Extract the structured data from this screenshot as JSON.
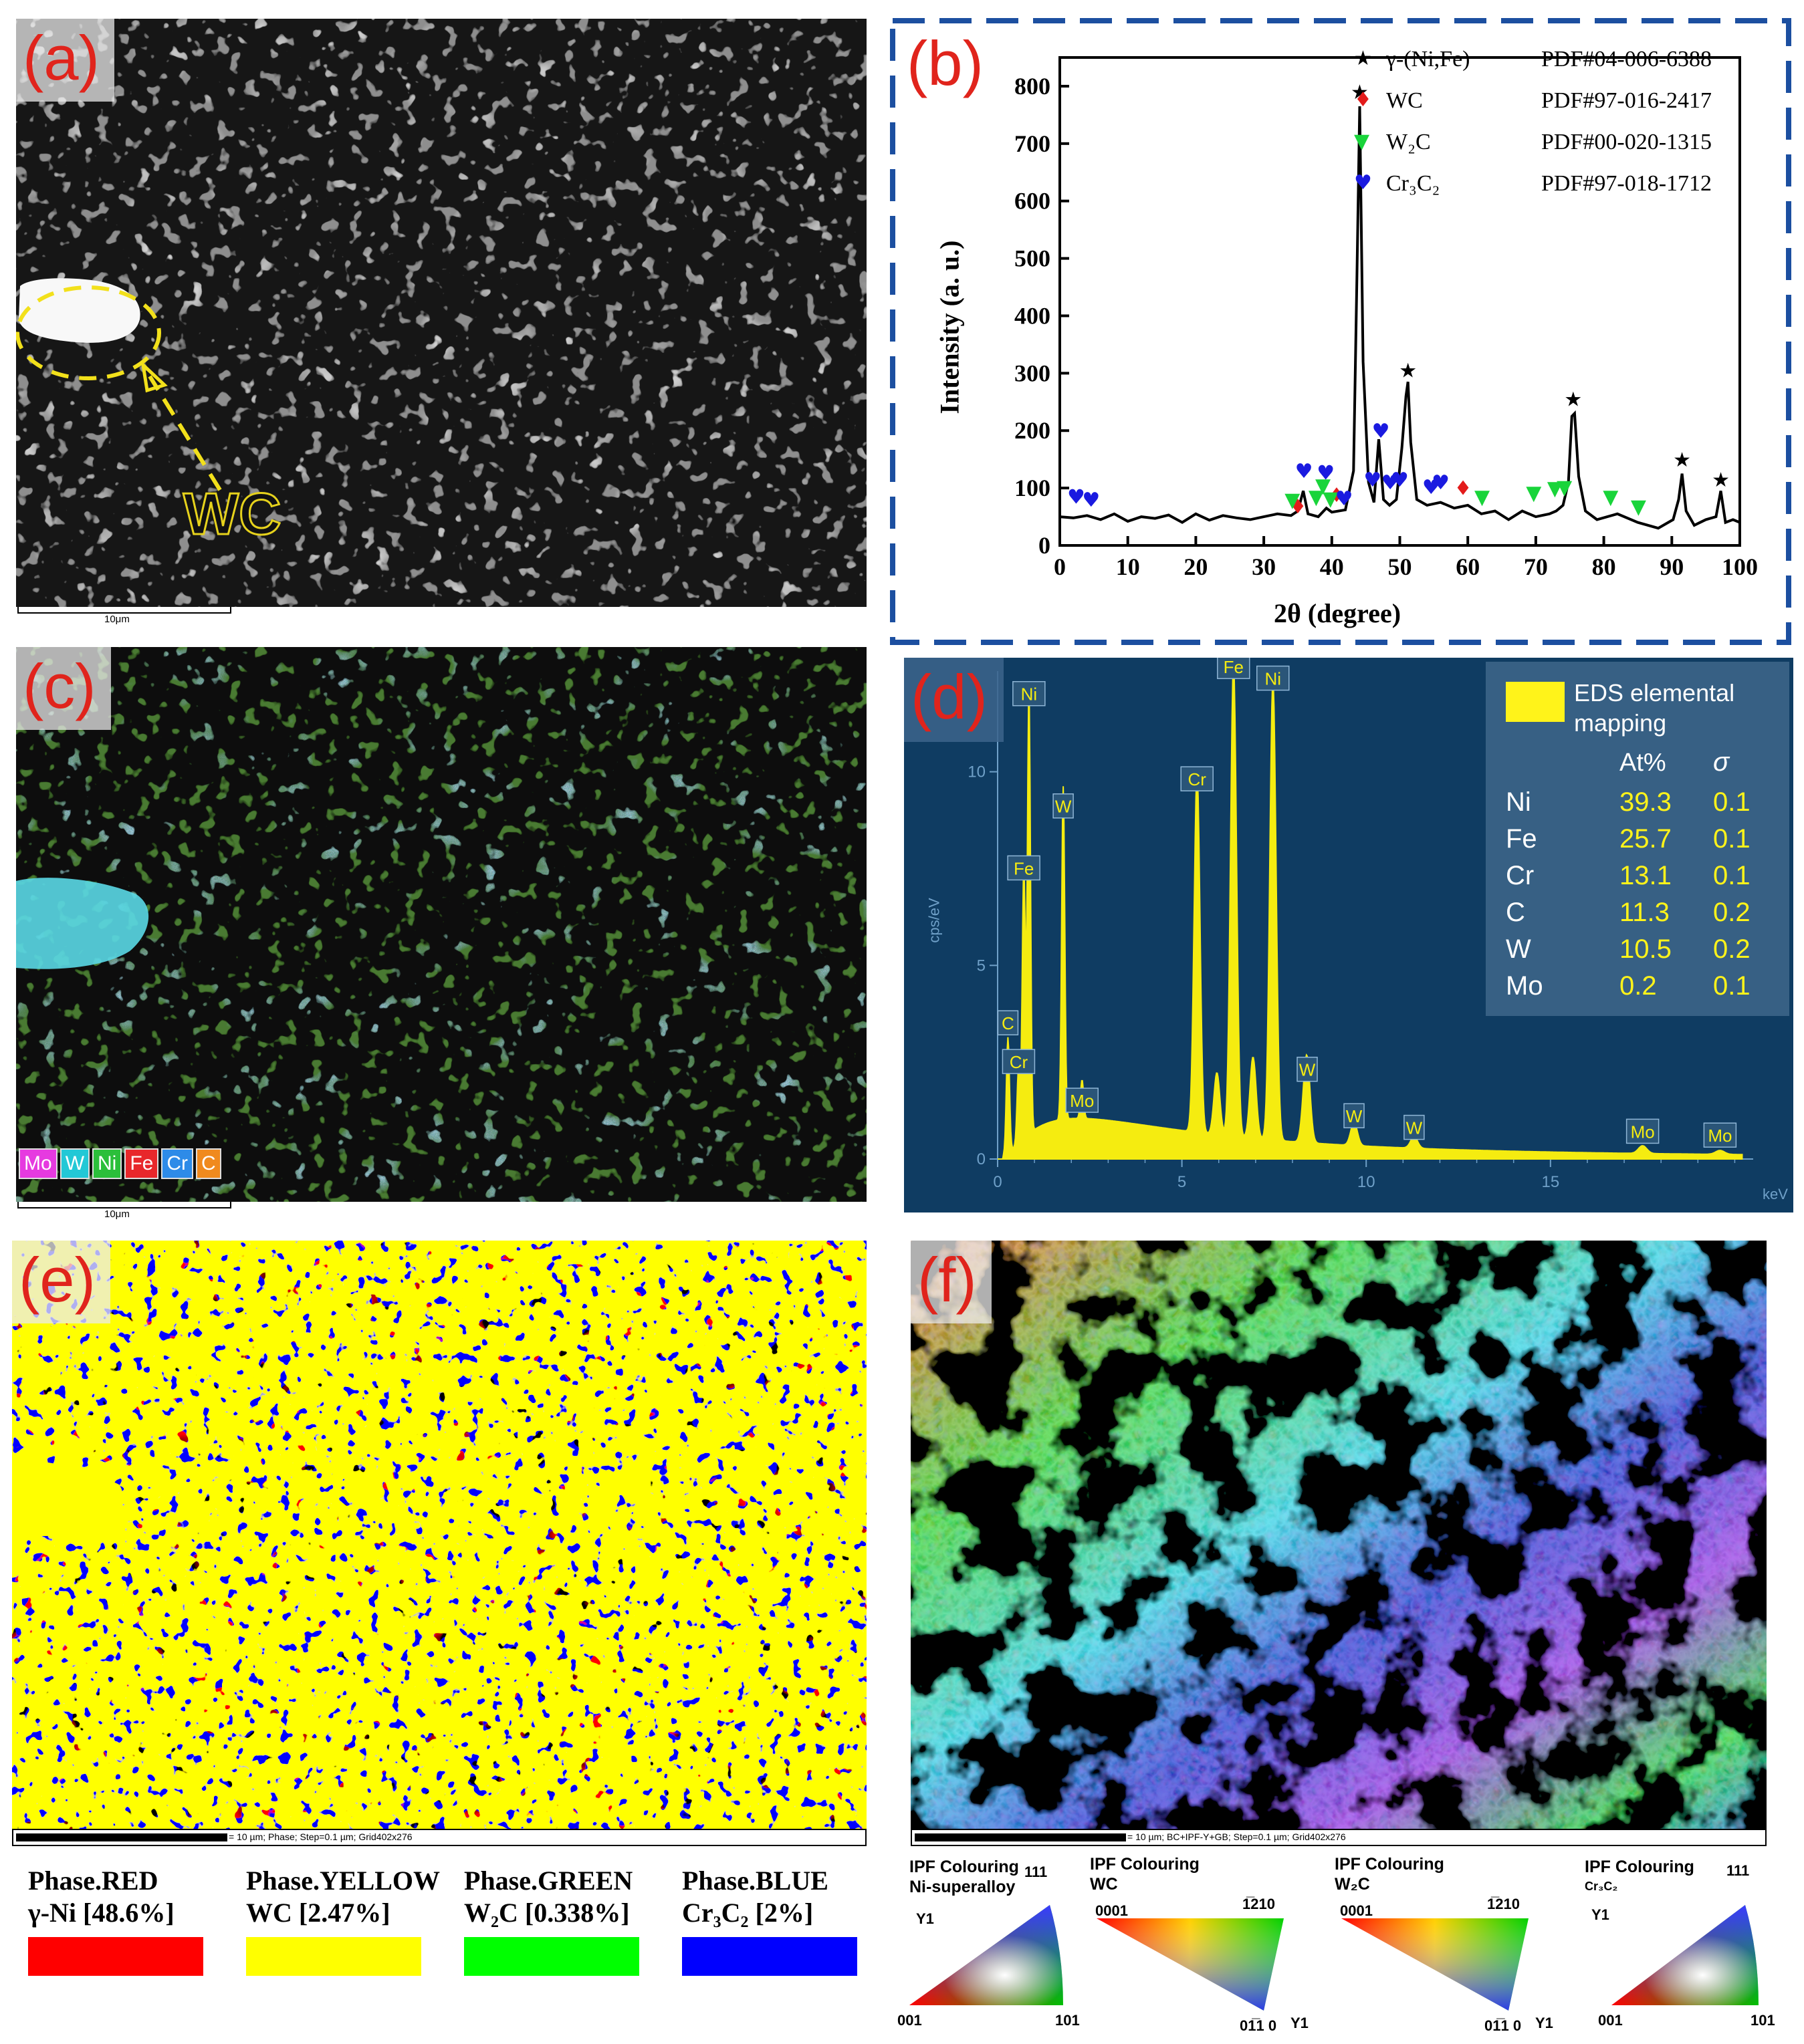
{
  "panel_a": {
    "label": "(a)",
    "annotation": "WC",
    "scalebar": "10μm",
    "colors": {
      "matrix": "#8e8e8e",
      "bright": "#d4d4d4",
      "pore": "#111111",
      "ellipse": "#f2e01b"
    }
  },
  "panel_b": {
    "label": "(b)",
    "legend": [
      {
        "marker": "★",
        "color": "#000000",
        "phase": "γ-(Ni,Fe)",
        "pdf": "PDF#04-006-6388"
      },
      {
        "marker": "♦",
        "color": "#e31b1b",
        "phase": "WC",
        "pdf": "PDF#97-016-2417"
      },
      {
        "marker": "▼",
        "color": "#19d43a",
        "phase": "W₂C",
        "pdf": "PDF#00-020-1315"
      },
      {
        "marker": "♥",
        "color": "#1a1ae0",
        "phase": "Cr₃C₂",
        "pdf": "PDF#97-018-1712"
      }
    ]
  },
  "chart_data": {
    "type": "line",
    "title": "",
    "xlabel": "2θ (degree)",
    "ylabel": "Intensity (a. u.)",
    "xlim": [
      0,
      100
    ],
    "ylim": [
      0,
      850
    ],
    "xticks": [
      0,
      10,
      20,
      30,
      40,
      50,
      60,
      70,
      80,
      90,
      100
    ],
    "yticks": [
      0,
      100,
      200,
      300,
      400,
      500,
      600,
      700,
      800
    ],
    "series": [
      {
        "x": [
          0,
          2,
          4,
          6,
          8,
          10,
          12,
          14,
          16,
          18,
          20,
          22,
          24,
          26,
          28,
          30,
          32,
          34,
          35,
          35.8,
          36.5,
          38,
          39.2,
          40,
          42,
          43.2,
          43.7,
          44.1,
          44.6,
          45.4,
          46.2,
          46.9,
          47.6,
          48.5,
          49.5,
          50.3,
          50.9,
          51.2,
          51.6,
          52.5,
          54,
          56,
          58,
          60,
          62,
          64,
          66,
          68,
          70,
          72,
          73,
          74,
          74.8,
          75.3,
          75.7,
          76.3,
          77.3,
          79,
          82,
          85,
          88,
          90.2,
          91,
          91.5,
          92.1,
          93.3,
          95,
          96.5,
          97.2,
          97.9,
          99,
          100
        ],
        "y": [
          50,
          48,
          52,
          45,
          55,
          42,
          50,
          47,
          53,
          40,
          55,
          44,
          52,
          48,
          45,
          50,
          55,
          52,
          60,
          95,
          55,
          50,
          65,
          58,
          62,
          130,
          470,
          765,
          320,
          110,
          75,
          185,
          80,
          70,
          80,
          170,
          260,
          285,
          180,
          80,
          70,
          75,
          65,
          70,
          55,
          60,
          45,
          60,
          50,
          55,
          60,
          70,
          110,
          225,
          230,
          120,
          60,
          45,
          55,
          40,
          30,
          45,
          80,
          125,
          60,
          35,
          45,
          50,
          95,
          40,
          45,
          40
        ]
      }
    ],
    "markers": [
      {
        "phase": "γ-(Ni,Fe)",
        "symbol": "★",
        "color": "#000000",
        "points": [
          [
            44.1,
            780
          ],
          [
            51.2,
            295
          ],
          [
            75.5,
            245
          ],
          [
            91.5,
            140
          ],
          [
            97.2,
            105
          ]
        ]
      },
      {
        "phase": "WC",
        "symbol": "♦",
        "color": "#e31b1b",
        "points": [
          [
            35.0,
            58
          ],
          [
            40.7,
            78
          ],
          [
            59.3,
            90
          ]
        ]
      },
      {
        "phase": "W₂C",
        "symbol": "▼",
        "color": "#19d43a",
        "points": [
          [
            34.2,
            70
          ],
          [
            37.7,
            75
          ],
          [
            38.7,
            95
          ],
          [
            39.8,
            72
          ],
          [
            62.1,
            75
          ],
          [
            69.7,
            82
          ],
          [
            72.8,
            90
          ],
          [
            74.2,
            92
          ],
          [
            81.0,
            75
          ],
          [
            85.1,
            58
          ]
        ]
      },
      {
        "phase": "Cr₃C₂",
        "symbol": "♥",
        "color": "#1a1ae0",
        "points": [
          [
            2.4,
            75
          ],
          [
            4.6,
            70
          ],
          [
            35.9,
            120
          ],
          [
            39.1,
            117
          ],
          [
            41.8,
            72
          ],
          [
            46.0,
            105
          ],
          [
            47.2,
            190
          ],
          [
            48.6,
            100
          ],
          [
            50.0,
            105
          ],
          [
            54.6,
            92
          ],
          [
            56.0,
            100
          ]
        ]
      }
    ]
  },
  "panel_c": {
    "label": "(c)",
    "scalebar": "10μm",
    "elements": [
      {
        "symbol": "Mo",
        "color": "#e63ae0"
      },
      {
        "symbol": "W",
        "color": "#22c8d6"
      },
      {
        "symbol": "Ni",
        "color": "#2bbf3a"
      },
      {
        "symbol": "Fe",
        "color": "#e8272b"
      },
      {
        "symbol": "Cr",
        "color": "#2d8be8"
      },
      {
        "symbol": "C",
        "color": "#f08a1e"
      }
    ]
  },
  "panel_d": {
    "label": "(d)",
    "y_unit": "cps/eV",
    "x_unit": "keV",
    "yticks": [
      "0",
      "5",
      "10"
    ],
    "xticks": [
      "0",
      "5",
      "10",
      "15"
    ],
    "peaks": [
      {
        "label": "Ni",
        "kev": 0.85,
        "height": 11.5
      },
      {
        "label": "Fe",
        "kev": 0.71,
        "height": 7.0
      },
      {
        "label": "C",
        "kev": 0.28,
        "height": 3.0
      },
      {
        "label": "Cr",
        "kev": 0.57,
        "height": 2.0
      },
      {
        "label": "W",
        "kev": 1.78,
        "height": 8.6
      },
      {
        "label": "Mo",
        "kev": 2.29,
        "height": 1.0
      },
      {
        "label": "Cr",
        "kev": 5.41,
        "height": 9.3
      },
      {
        "label": "Fe",
        "kev": 6.4,
        "height": 12.2
      },
      {
        "label": "Ni",
        "kev": 7.47,
        "height": 11.9
      },
      {
        "label": "W",
        "kev": 8.4,
        "height": 1.8
      },
      {
        "label": "W",
        "kev": 9.67,
        "height": 0.6
      },
      {
        "label": "W",
        "kev": 11.3,
        "height": 0.3
      },
      {
        "label": "Mo",
        "kev": 17.5,
        "height": 0.2
      },
      {
        "label": "Mo",
        "kev": 19.6,
        "height": 0.1
      }
    ],
    "table": {
      "title": "EDS elemental mapping",
      "head_at": "At%",
      "head_sigma": "σ",
      "rows": [
        {
          "el": "Ni",
          "at": "39.3",
          "sigma": "0.1"
        },
        {
          "el": "Fe",
          "at": "25.7",
          "sigma": "0.1"
        },
        {
          "el": "Cr",
          "at": "13.1",
          "sigma": "0.1"
        },
        {
          "el": "C",
          "at": "11.3",
          "sigma": "0.2"
        },
        {
          "el": "W",
          "at": "10.5",
          "sigma": "0.2"
        },
        {
          "el": "Mo",
          "at": "0.2",
          "sigma": "0.1"
        }
      ]
    }
  },
  "panel_e": {
    "label": "(e)",
    "scalebar_text": "= 10 µm; Phase; Step=0.1 µm; Grid402x276"
  },
  "panel_f": {
    "label": "(f)",
    "scalebar_text": "= 10 µm; BC+IPF-Y+GB; Step=0.1 µm; Grid402x276"
  },
  "phase_legend": [
    {
      "title": "Phase.RED",
      "phase": "γ-Ni [48.6%]",
      "color": "#ff0000"
    },
    {
      "title": "Phase.YELLOW",
      "phase": "WC [2.47%]",
      "color": "#ffff00"
    },
    {
      "title": "Phase.GREEN",
      "phase": "W₂C [0.338%]",
      "color": "#00ff00"
    },
    {
      "title": "Phase.BLUE",
      "phase": "Cr₃C₂ [2%]",
      "color": "#0000ff"
    }
  ],
  "ipf_keys": [
    {
      "heading": "IPF Colouring",
      "phase": "Ni-superalloy",
      "axis": "Y1",
      "corners": [
        "001",
        "101",
        "111"
      ]
    },
    {
      "heading": "IPF Colouring",
      "phase": "WC",
      "axis": "Y1",
      "corners": [
        "0001",
        "1̅210",
        "01̅1 0"
      ]
    },
    {
      "heading": "IPF Colouring",
      "phase": "W₂C",
      "axis": "Y1",
      "corners": [
        "0001",
        "1̅210",
        "01̅1 0"
      ]
    },
    {
      "heading": "IPF Colouring",
      "phase": "Cr₃C₂",
      "axis": "Y1",
      "corners": [
        "001",
        "101",
        "111"
      ]
    }
  ]
}
